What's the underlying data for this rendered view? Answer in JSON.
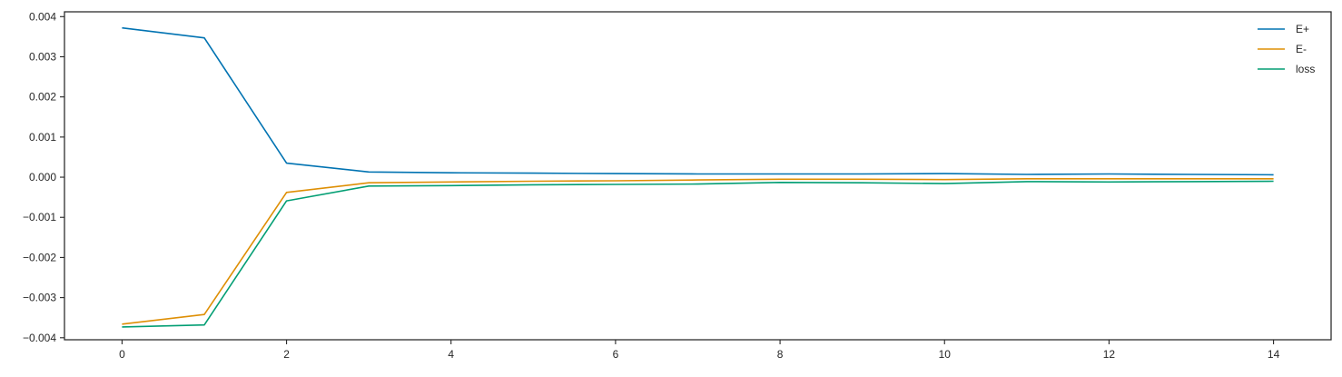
{
  "chart_data": {
    "type": "line",
    "title": "",
    "xlabel": "",
    "ylabel": "",
    "xlim": [
      -0.7,
      14.7
    ],
    "ylim": [
      -0.00405,
      0.00412
    ],
    "xticks": [
      0,
      2,
      4,
      6,
      8,
      10,
      12,
      14
    ],
    "yticks": [
      0.004,
      0.003,
      0.002,
      0.001,
      0.0,
      -0.001,
      -0.002,
      -0.003,
      -0.004
    ],
    "ytick_labels": [
      "0.004",
      "0.003",
      "0.002",
      "0.001",
      "0.000",
      "−0.001",
      "−0.002",
      "−0.003",
      "−0.004"
    ],
    "grid": false,
    "legend": "top-right",
    "x": [
      0,
      1,
      2,
      3,
      4,
      5,
      6,
      7,
      8,
      9,
      10,
      11,
      12,
      13,
      14
    ],
    "series": [
      {
        "name": "E+",
        "color": "#0173b2",
        "values": [
          0.00372,
          0.00347,
          0.00035,
          0.00013,
          0.00011,
          0.0001,
          9e-05,
          8e-05,
          8e-05,
          8e-05,
          9e-05,
          7e-05,
          8e-05,
          7e-05,
          6e-05
        ]
      },
      {
        "name": "E-",
        "color": "#de8f05",
        "values": [
          -0.00366,
          -0.00342,
          -0.00038,
          -0.00014,
          -0.00012,
          -0.0001,
          -9e-05,
          -7e-05,
          -5e-05,
          -5e-05,
          -6e-05,
          -4e-05,
          -4e-05,
          -4e-05,
          -4e-05
        ]
      },
      {
        "name": "loss",
        "color": "#029e73",
        "values": [
          -0.00373,
          -0.00368,
          -0.00059,
          -0.00022,
          -0.00021,
          -0.00019,
          -0.00018,
          -0.00017,
          -0.00013,
          -0.00014,
          -0.00016,
          -0.00011,
          -0.00012,
          -0.00011,
          -0.0001
        ]
      }
    ]
  }
}
